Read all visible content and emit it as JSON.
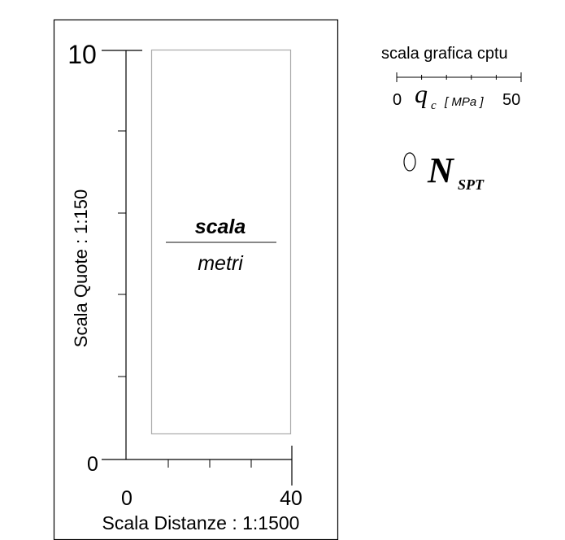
{
  "legend_panel": {
    "y_max_label": "10",
    "y_min_label": "0",
    "x_min_label": "0",
    "x_max_label": "40",
    "y_axis_title": "Scala Quote : 1:150",
    "x_axis_title": "Scala Distanze : 1:1500",
    "scale_top": "scala",
    "scale_bottom": "metri"
  },
  "cptu_scale": {
    "title": "scala grafica cptu",
    "min_label": "0",
    "q_symbol": "q",
    "q_subscript": "c",
    "unit": "[ MPa ]",
    "max_label": "50"
  },
  "nspt": {
    "symbol": "N",
    "subscript": "SPT"
  }
}
